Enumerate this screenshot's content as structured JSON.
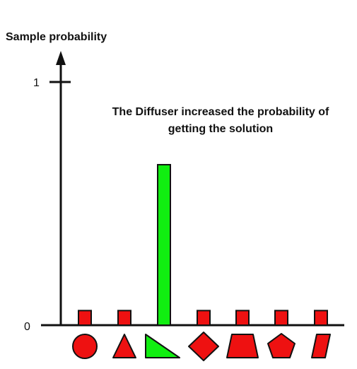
{
  "chart_data": {
    "type": "bar",
    "ylabel": "Sample probability",
    "ylim": [
      0,
      1
    ],
    "yticks": [
      {
        "value": 1,
        "label": "1"
      },
      {
        "value": 0,
        "label": "0"
      }
    ],
    "annotation_lines": [
      "The Diffuser increased the probability of",
      "getting the solution"
    ],
    "categories": [
      "circle",
      "triangle",
      "right-triangle",
      "diamond",
      "trapezoid",
      "pentagon",
      "parallelogram"
    ],
    "values": [
      0.06,
      0.06,
      0.66,
      0.06,
      0.06,
      0.06,
      0.06
    ],
    "highlight_index": 2,
    "colors": {
      "bar": "#ee1111",
      "highlight": "#11ee11",
      "shape_fill": "#ee1111",
      "highlight_shape_fill": "#11ee11",
      "stroke": "#111111"
    }
  }
}
